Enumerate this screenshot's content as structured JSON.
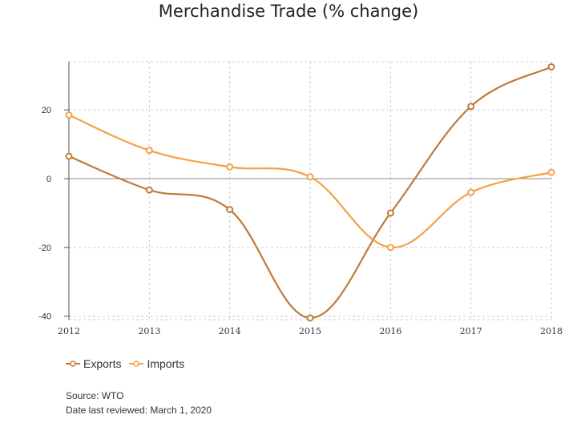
{
  "chart_data": {
    "type": "line",
    "title": "Merchandise Trade (% change)",
    "x": [
      "2012",
      "2013",
      "2014",
      "2015",
      "2016",
      "2017",
      "2018"
    ],
    "series": [
      {
        "name": "Exports",
        "color": "#c07a3a",
        "values": [
          6.5,
          -3.3,
          -9,
          -40.5,
          -10,
          21,
          32.5
        ]
      },
      {
        "name": "Imports",
        "color": "#f5a04a",
        "values": [
          18.5,
          8.2,
          3.4,
          0.5,
          -20,
          -4,
          1.8
        ]
      }
    ],
    "y_ticks": [
      "20",
      "0",
      "-20",
      "-40"
    ],
    "ylim": [
      -41,
      34
    ],
    "grid": true,
    "legend_position": "bottom-left"
  },
  "footer": {
    "source": "Source: WTO",
    "reviewed": "Date last reviewed: March 1, 2020"
  }
}
